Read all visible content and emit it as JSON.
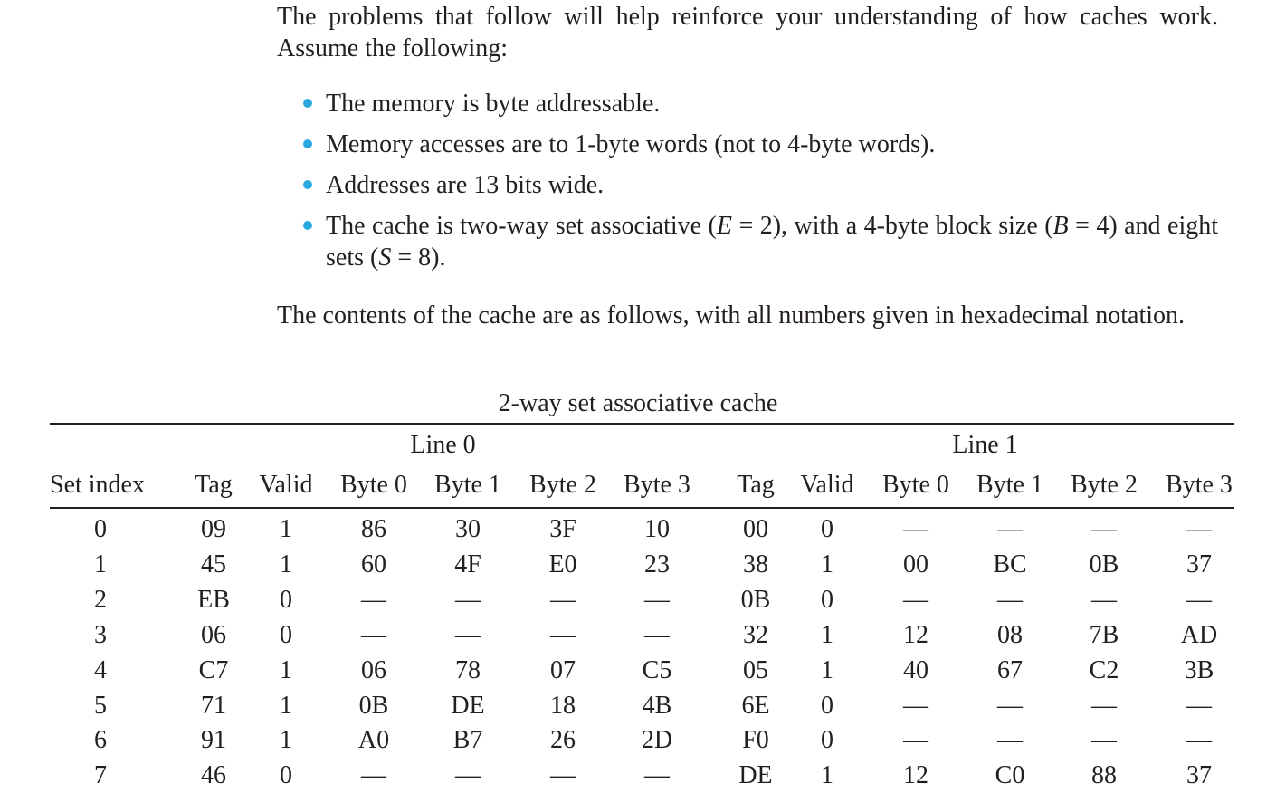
{
  "intro": "The problems that follow will help reinforce your understanding of how caches work. Assume the following:",
  "bullets": [
    {
      "text": "The memory is byte addressable."
    },
    {
      "text": "Memory accesses are to 1-byte words (not to 4-byte words)."
    },
    {
      "text": "Addresses are 13 bits wide."
    },
    {
      "pre": "The cache is two-way set associative (",
      "m1": "E",
      "mid1": " = 2), with a 4-byte block size (",
      "m2": "B",
      "mid2": " = 4) and eight sets (",
      "m3": "S",
      "post": " = 8)."
    }
  ],
  "contents_note": "The contents of the cache are as follows, with all numbers given in hexadecimal notation.",
  "table": {
    "caption": "2-way set associative cache",
    "line0_label": "Line 0",
    "line1_label": "Line 1",
    "columns": [
      "Set index",
      "Tag",
      "Valid",
      "Byte 0",
      "Byte 1",
      "Byte 2",
      "Byte 3",
      "Tag",
      "Valid",
      "Byte 0",
      "Byte 1",
      "Byte 2",
      "Byte 3"
    ],
    "rows": [
      [
        "0",
        "09",
        "1",
        "86",
        "30",
        "3F",
        "10",
        "00",
        "0",
        "—",
        "—",
        "—",
        "—"
      ],
      [
        "1",
        "45",
        "1",
        "60",
        "4F",
        "E0",
        "23",
        "38",
        "1",
        "00",
        "BC",
        "0B",
        "37"
      ],
      [
        "2",
        "EB",
        "0",
        "—",
        "—",
        "—",
        "—",
        "0B",
        "0",
        "—",
        "—",
        "—",
        "—"
      ],
      [
        "3",
        "06",
        "0",
        "—",
        "—",
        "—",
        "—",
        "32",
        "1",
        "12",
        "08",
        "7B",
        "AD"
      ],
      [
        "4",
        "C7",
        "1",
        "06",
        "78",
        "07",
        "C5",
        "05",
        "1",
        "40",
        "67",
        "C2",
        "3B"
      ],
      [
        "5",
        "71",
        "1",
        "0B",
        "DE",
        "18",
        "4B",
        "6E",
        "0",
        "—",
        "—",
        "—",
        "—"
      ],
      [
        "6",
        "91",
        "1",
        "A0",
        "B7",
        "26",
        "2D",
        "F0",
        "0",
        "—",
        "—",
        "—",
        "—"
      ],
      [
        "7",
        "46",
        "0",
        "—",
        "—",
        "—",
        "—",
        "DE",
        "1",
        "12",
        "C0",
        "88",
        "37"
      ]
    ]
  },
  "colors": {
    "text": "#231f20",
    "bullet": "#29a8e0",
    "background": "#ffffff"
  }
}
